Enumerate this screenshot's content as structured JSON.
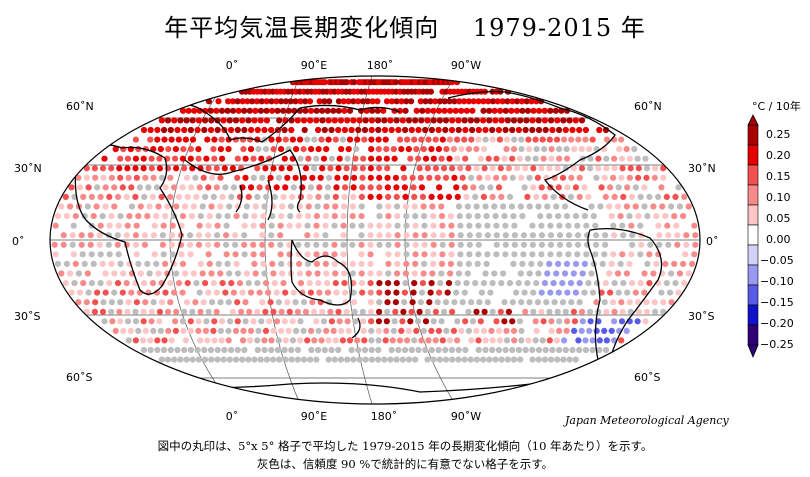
{
  "title": "年平均気温長期変化傾向　 1979-2015 年",
  "agency": "Japan Meteorological Agency",
  "caption_line1": "図中の丸印は、5°x 5° 格子で平均した 1979-2015 年の長期変化傾向（10 年あたり）を示す。",
  "caption_line2": "灰色は、信頼度 90 %で統計的に有意でない格子を示す。",
  "colorbar": {
    "unit": "°C / 10年",
    "ticks": [
      "0.25",
      "0.20",
      "0.15",
      "0.10",
      "0.05",
      "0.00",
      "−0.05",
      "−0.10",
      "−0.15",
      "−0.20",
      "−0.25"
    ],
    "colors": [
      "#a80000",
      "#e60000",
      "#f55050",
      "#f88a8a",
      "#fcc6c6",
      "#ffffff",
      "#d2d2f8",
      "#9999f2",
      "#5a5ae8",
      "#1111cc",
      "#30007a"
    ]
  },
  "chart_data": {
    "type": "dot-map",
    "period": "1979-2015",
    "grid": "5° x 5°",
    "units": "°C / 10年",
    "insignificant_color": "#bdbdbd",
    "lon_labels_top": [
      "0˚",
      "90˚E",
      "180˚",
      "90˚W"
    ],
    "lon_labels_bottom": [
      "0˚",
      "90˚E",
      "180˚",
      "90˚W"
    ],
    "lat_labels": [
      "60˚N",
      "30˚N",
      "0˚",
      "30˚S",
      "60˚S"
    ]
  }
}
